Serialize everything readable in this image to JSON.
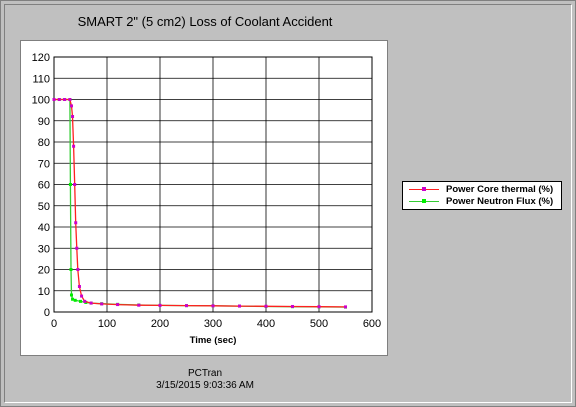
{
  "window": {
    "background": "#c0c0c0"
  },
  "chart_data": {
    "type": "line",
    "title": "SMART 2\" (5 cm2) Loss of Coolant Accident",
    "xlabel": "Time (sec)",
    "ylabel": "",
    "xlim": [
      0,
      600
    ],
    "ylim": [
      0,
      120
    ],
    "xticks": [
      "0",
      "100",
      "200",
      "300",
      "400",
      "500",
      "600"
    ],
    "yticks": [
      "0",
      "10",
      "20",
      "30",
      "40",
      "50",
      "60",
      "70",
      "80",
      "90",
      "100",
      "110",
      "120"
    ],
    "grid": true,
    "legend_position": "right",
    "series": [
      {
        "name": "Power Core thermal (%)",
        "color": "#ff2020",
        "marker_color": "#cc00cc",
        "points": [
          [
            0,
            100
          ],
          [
            10,
            100
          ],
          [
            20,
            100
          ],
          [
            30,
            100
          ],
          [
            33,
            97
          ],
          [
            35,
            92
          ],
          [
            37,
            78
          ],
          [
            39,
            60
          ],
          [
            41,
            42
          ],
          [
            43,
            30
          ],
          [
            45,
            20
          ],
          [
            48,
            12
          ],
          [
            52,
            7.5
          ],
          [
            58,
            5
          ],
          [
            70,
            4.2
          ],
          [
            90,
            3.8
          ],
          [
            120,
            3.5
          ],
          [
            160,
            3.2
          ],
          [
            200,
            3.1
          ],
          [
            250,
            3.0
          ],
          [
            300,
            2.9
          ],
          [
            350,
            2.8
          ],
          [
            400,
            2.7
          ],
          [
            450,
            2.6
          ],
          [
            500,
            2.5
          ],
          [
            550,
            2.4
          ]
        ]
      },
      {
        "name": "Power Neutron Flux (%)",
        "color": "#33cc33",
        "marker_color": "#00ee00",
        "points": [
          [
            0,
            100
          ],
          [
            10,
            100
          ],
          [
            20,
            100
          ],
          [
            30,
            100
          ],
          [
            31,
            60
          ],
          [
            32,
            20
          ],
          [
            33,
            8
          ],
          [
            35,
            6
          ],
          [
            40,
            5.5
          ],
          [
            50,
            5
          ],
          [
            60,
            4.5
          ],
          [
            70,
            4.2
          ],
          [
            90,
            3.9
          ],
          [
            120,
            3.6
          ],
          [
            160,
            3.3
          ],
          [
            200,
            3.1
          ],
          [
            250,
            3.0
          ],
          [
            300,
            2.9
          ],
          [
            350,
            2.8
          ],
          [
            400,
            2.6
          ],
          [
            450,
            2.5
          ],
          [
            500,
            2.4
          ],
          [
            550,
            2.3
          ]
        ]
      }
    ]
  },
  "footer": {
    "app": "PCTran",
    "timestamp": "3/15/2015 9:03:36 AM"
  }
}
